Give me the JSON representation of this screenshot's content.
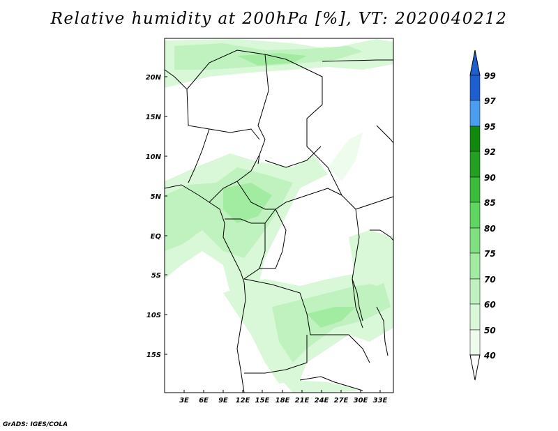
{
  "title": "Relative humidity at 200hPa [%], VT: 2020040212",
  "credit": "GrADS: IGES/COLA",
  "map": {
    "lat_labels": [
      "20N",
      "15N",
      "10N",
      "5N",
      "EQ",
      "5S",
      "10S",
      "15S"
    ],
    "lon_labels": [
      "3E",
      "6E",
      "9E",
      "12E",
      "15E",
      "18E",
      "21E",
      "24E",
      "27E",
      "30E",
      "33E"
    ]
  },
  "colorbar": {
    "levels": [
      "99",
      "97",
      "95",
      "92",
      "90",
      "85",
      "80",
      "75",
      "70",
      "60",
      "50",
      "40"
    ],
    "colors": [
      "#1e5fd0",
      "#2e7de8",
      "#4a9ef0",
      "#0f8a0f",
      "#22a022",
      "#3cbc3c",
      "#5fd65f",
      "#80e080",
      "#a2eca2",
      "#bff2bf",
      "#d8f8d8",
      "#eefcee"
    ]
  }
}
